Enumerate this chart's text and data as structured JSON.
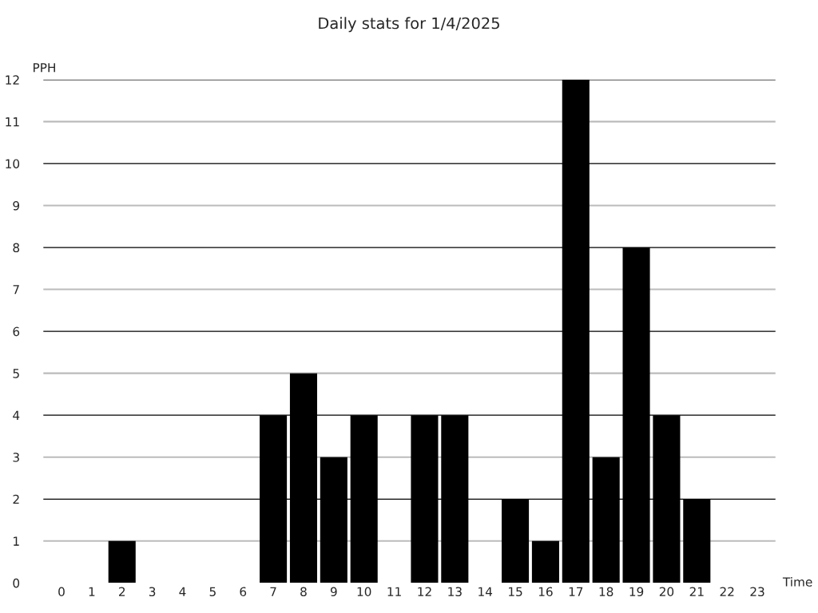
{
  "chart_data": {
    "type": "bar",
    "title": "Daily stats for 1/4/2025",
    "xlabel": "Time",
    "ylabel": "PPH",
    "categories": [
      "0",
      "1",
      "2",
      "3",
      "4",
      "5",
      "6",
      "7",
      "8",
      "9",
      "10",
      "11",
      "12",
      "13",
      "14",
      "15",
      "16",
      "17",
      "18",
      "19",
      "20",
      "21",
      "22",
      "23"
    ],
    "values": [
      0,
      0,
      1,
      0,
      0,
      0,
      0,
      4,
      5,
      3,
      4,
      0,
      4,
      4,
      0,
      2,
      1,
      12,
      3,
      8,
      4,
      2,
      0,
      0
    ],
    "color": "#000000",
    "ylim": [
      0,
      12
    ],
    "yticks": [
      0,
      1,
      2,
      3,
      4,
      5,
      6,
      7,
      8,
      9,
      10,
      11,
      12
    ],
    "grid": "y",
    "legend": false
  }
}
